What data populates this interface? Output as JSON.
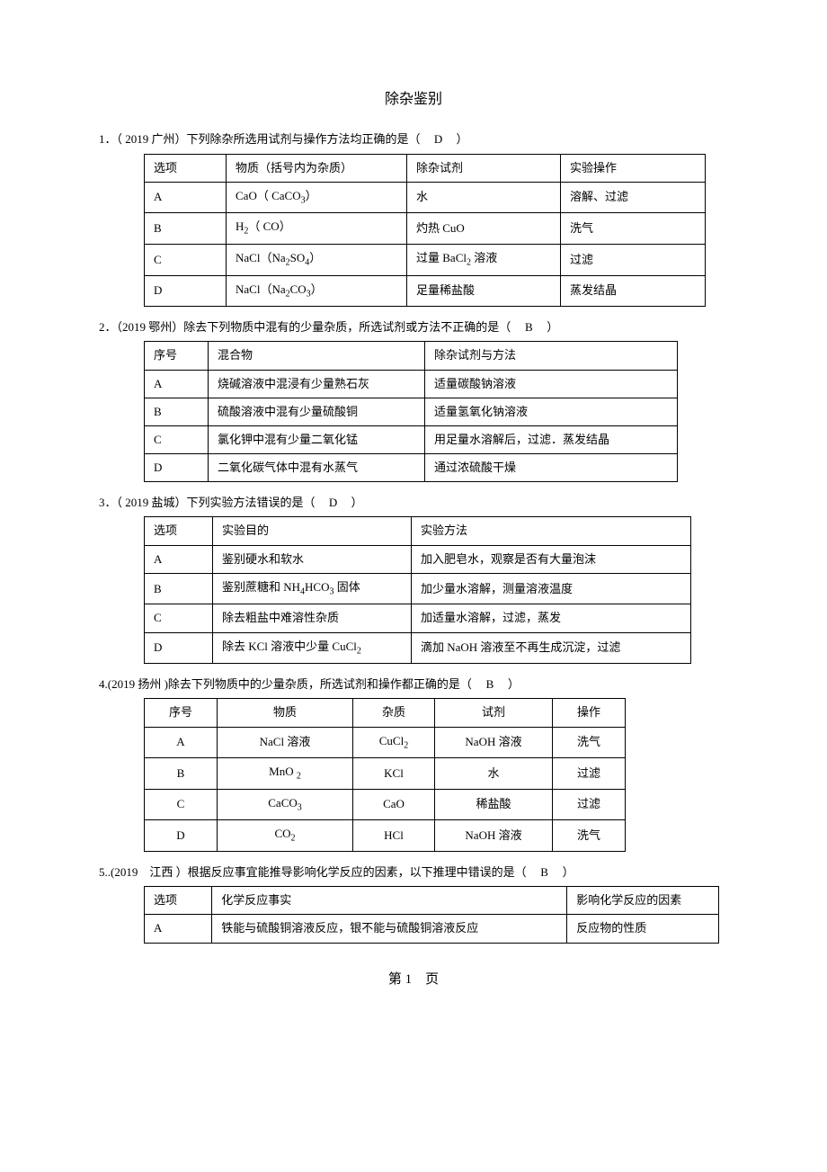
{
  "title": "除杂鉴别",
  "footer": "第 1　页",
  "questions": [
    {
      "num": "1．",
      "stem_pre": "（ 2019 广州）下列除杂所选用试剂与操作方法均正确的是（",
      "answer": "D",
      "stem_post": "）",
      "table": {
        "cols": [
          "选项",
          "物质（括号内为杂质）",
          "除杂试剂",
          "实验操作"
        ],
        "widths": [
          70,
          180,
          150,
          140
        ],
        "rows": [
          [
            "A",
            "CaO（ CaCO₃）",
            "水",
            "溶解、过滤"
          ],
          [
            "B",
            "H₂（ CO）",
            "灼热 CuO",
            "洗气"
          ],
          [
            "C",
            "NaCl（Na₂SO₄）",
            "过量 BaCl₂ 溶液",
            "过滤"
          ],
          [
            "D",
            "NaCl（Na₂CO₃）",
            "足量稀盐酸",
            "蒸发结晶"
          ]
        ]
      }
    },
    {
      "num": "2．",
      "stem_pre": "（2019 鄂州）除去下列物质中混有的少量杂质，所选试剂或方法不正确的是（",
      "answer": "B",
      "stem_post": "）",
      "table": {
        "cols": [
          "序号",
          "混合物",
          "除杂试剂与方法"
        ],
        "widths": [
          50,
          220,
          260
        ],
        "rows": [
          [
            "A",
            "烧碱溶液中混浸有少量熟石灰",
            "适量碳酸钠溶液"
          ],
          [
            "B",
            "硫酸溶液中混有少量硫酸铜",
            "适量氢氧化钠溶液"
          ],
          [
            "C",
            "氯化钾中混有少量二氧化锰",
            "用足量水溶解后，过滤．蒸发结晶"
          ],
          [
            "D",
            "二氧化碳气体中混有水蒸气",
            "通过浓硫酸干燥"
          ]
        ]
      }
    },
    {
      "num": "3．",
      "stem_pre": "（ 2019 盐城）下列实验方法错误的是（",
      "answer": "D",
      "stem_post": "）",
      "table": {
        "cols": [
          "选项",
          "实验目的",
          "实验方法"
        ],
        "widths": [
          55,
          200,
          290
        ],
        "rows": [
          [
            "A",
            "鉴别硬水和软水",
            "加入肥皂水，观察是否有大量泡沫"
          ],
          [
            "B",
            "鉴别蔗糖和  NH₄HCO₃ 固体",
            "加少量水溶解，测量溶液温度"
          ],
          [
            "C",
            "除去粗盐中难溶性杂质",
            "加适量水溶解，过滤，蒸发"
          ],
          [
            "D",
            "除去 KCl 溶液中少量  CuCl₂",
            "滴加 NaOH 溶液至不再生成沉淀，过滤"
          ]
        ]
      }
    },
    {
      "num": "4.",
      "stem_pre": "(2019 扬州 )除去下列物质中的少量杂质，所选试剂和操作都正确的是（",
      "answer": "B",
      "stem_post": "）",
      "centered": true,
      "table": {
        "cols": [
          "序号",
          "物质",
          "杂质",
          "试剂",
          "操作"
        ],
        "widths": [
          60,
          130,
          70,
          110,
          60
        ],
        "rows": [
          [
            "A",
            "NaCl 溶液",
            "CuCl₂",
            "NaOH 溶液",
            "洗气"
          ],
          [
            "B",
            "MnO ₂",
            "KCl",
            "水",
            "过滤"
          ],
          [
            "C",
            "CaCO₃",
            "CaO",
            "稀盐酸",
            "过滤"
          ],
          [
            "D",
            "CO₂",
            "HCl",
            "NaOH 溶液",
            "洗气"
          ]
        ]
      }
    },
    {
      "num": "5..",
      "stem_pre": "(2019　江西  ）根据反应事宜能推导影响化学反应的因素，以下推理中错误的是（",
      "answer": "B",
      "stem_post": "）",
      "table": {
        "cols": [
          "选项",
          "化学反应事实",
          "影响化学反应的因素"
        ],
        "widths": [
          55,
          380,
          150
        ],
        "rows": [
          [
            "A",
            "铁能与硫酸铜溶液反应，银不能与硫酸铜溶液反应",
            "反应物的性质"
          ]
        ]
      }
    }
  ]
}
